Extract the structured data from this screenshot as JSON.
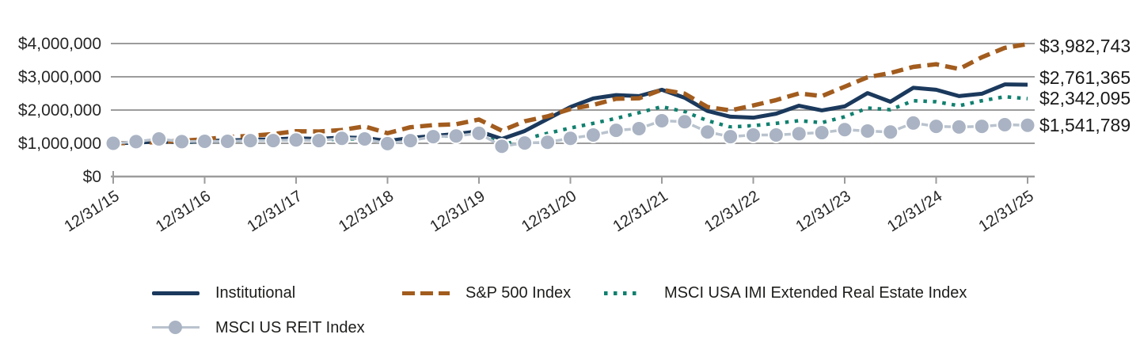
{
  "chart_data": {
    "type": "line",
    "title": "",
    "xlabel": "",
    "ylabel": "",
    "ylim": [
      0,
      4000000
    ],
    "grid": "horizontal",
    "legend_position": "bottom",
    "y_tick_labels": [
      "$0",
      "$1,000,000",
      "$2,000,000",
      "$3,000,000",
      "$4,000,000"
    ],
    "x_tick_labels": [
      "12/31/15",
      "12/31/16",
      "12/31/17",
      "12/31/18",
      "12/31/19",
      "12/31/20",
      "12/31/21",
      "12/31/22",
      "12/31/23",
      "12/31/24",
      "12/31/25"
    ],
    "dates": [
      "12/31/15",
      "3/31/16",
      "6/30/16",
      "9/30/16",
      "12/31/16",
      "3/31/17",
      "6/30/17",
      "9/30/17",
      "12/31/17",
      "3/31/18",
      "6/30/18",
      "9/30/18",
      "12/31/18",
      "3/31/19",
      "6/30/19",
      "9/30/19",
      "12/31/19",
      "3/31/20",
      "6/30/20",
      "9/30/20",
      "12/31/20",
      "3/31/21",
      "6/30/21",
      "9/30/21",
      "12/31/21",
      "3/31/22",
      "6/30/22",
      "9/30/22",
      "12/31/22",
      "3/31/23",
      "6/30/23",
      "9/30/23",
      "12/31/23",
      "3/31/24",
      "6/30/24",
      "9/30/24",
      "12/31/24",
      "3/31/25",
      "6/30/25",
      "9/30/25",
      "12/31/25"
    ],
    "series": [
      {
        "name": "Institutional",
        "style": "solid",
        "color": "#1B395C",
        "end_label": "$2,761,365",
        "final_value": 2761365,
        "values": [
          1000000,
          1020000,
          1055000,
          1040000,
          1065000,
          1085000,
          1105000,
          1120000,
          1150000,
          1130000,
          1175000,
          1160000,
          1070000,
          1160000,
          1220000,
          1280000,
          1360000,
          1130000,
          1370000,
          1730000,
          2090000,
          2350000,
          2450000,
          2420000,
          2610000,
          2370000,
          1970000,
          1800000,
          1770000,
          1890000,
          2130000,
          1990000,
          2110000,
          2510000,
          2250000,
          2670000,
          2610000,
          2420000,
          2490000,
          2770000,
          2761365
        ]
      },
      {
        "name": "S&P 500 Index",
        "style": "dashed",
        "color": "#A25C1E",
        "end_label": "$3,982,743",
        "final_value": 3982743,
        "values": [
          1000000,
          1013000,
          1038000,
          1078000,
          1120000,
          1188000,
          1224000,
          1279000,
          1364000,
          1354000,
          1400000,
          1508000,
          1304000,
          1483000,
          1547000,
          1573000,
          1715000,
          1379000,
          1662000,
          1811000,
          2030000,
          2155000,
          2339000,
          2353000,
          2611000,
          2491000,
          2091000,
          1989000,
          2139000,
          2300000,
          2500000,
          2419000,
          2702000,
          2987000,
          3115000,
          3298000,
          3378000,
          3234000,
          3588000,
          3870000,
          3982743
        ]
      },
      {
        "name": "MSCI USA IMI Extended Real Estate Index",
        "style": "dotted",
        "color": "#11806F",
        "end_label": "$2,342,095",
        "final_value": 2342095,
        "values": [
          1000000,
          1015000,
          1050000,
          1030000,
          1050000,
          1070000,
          1090000,
          1095000,
          1120000,
          1100000,
          1130000,
          1140000,
          1040000,
          1140000,
          1190000,
          1240000,
          1330000,
          950000,
          1130000,
          1300000,
          1460000,
          1600000,
          1750000,
          1920000,
          2100000,
          1950000,
          1680000,
          1490000,
          1530000,
          1600000,
          1680000,
          1620000,
          1800000,
          2060000,
          2010000,
          2280000,
          2250000,
          2130000,
          2280000,
          2400000,
          2342095
        ]
      },
      {
        "name": "MSCI US REIT Index",
        "style": "solid-markers",
        "color": "#A9B3C3",
        "line_color": "#B9C3CE",
        "end_label": "$1,541,789",
        "final_value": 1541789,
        "values": [
          1000000,
          1050000,
          1130000,
          1050000,
          1060000,
          1060000,
          1080000,
          1080000,
          1100000,
          1080000,
          1150000,
          1130000,
          990000,
          1080000,
          1200000,
          1220000,
          1300000,
          910000,
          1010000,
          1030000,
          1150000,
          1250000,
          1390000,
          1440000,
          1680000,
          1650000,
          1340000,
          1200000,
          1250000,
          1250000,
          1290000,
          1320000,
          1410000,
          1370000,
          1340000,
          1610000,
          1510000,
          1490000,
          1510000,
          1560000,
          1541789
        ]
      }
    ],
    "colors": {
      "gridline": "#9C9C9C",
      "axis_text": "#262626",
      "end_label_text": "#1A1A1A"
    }
  }
}
